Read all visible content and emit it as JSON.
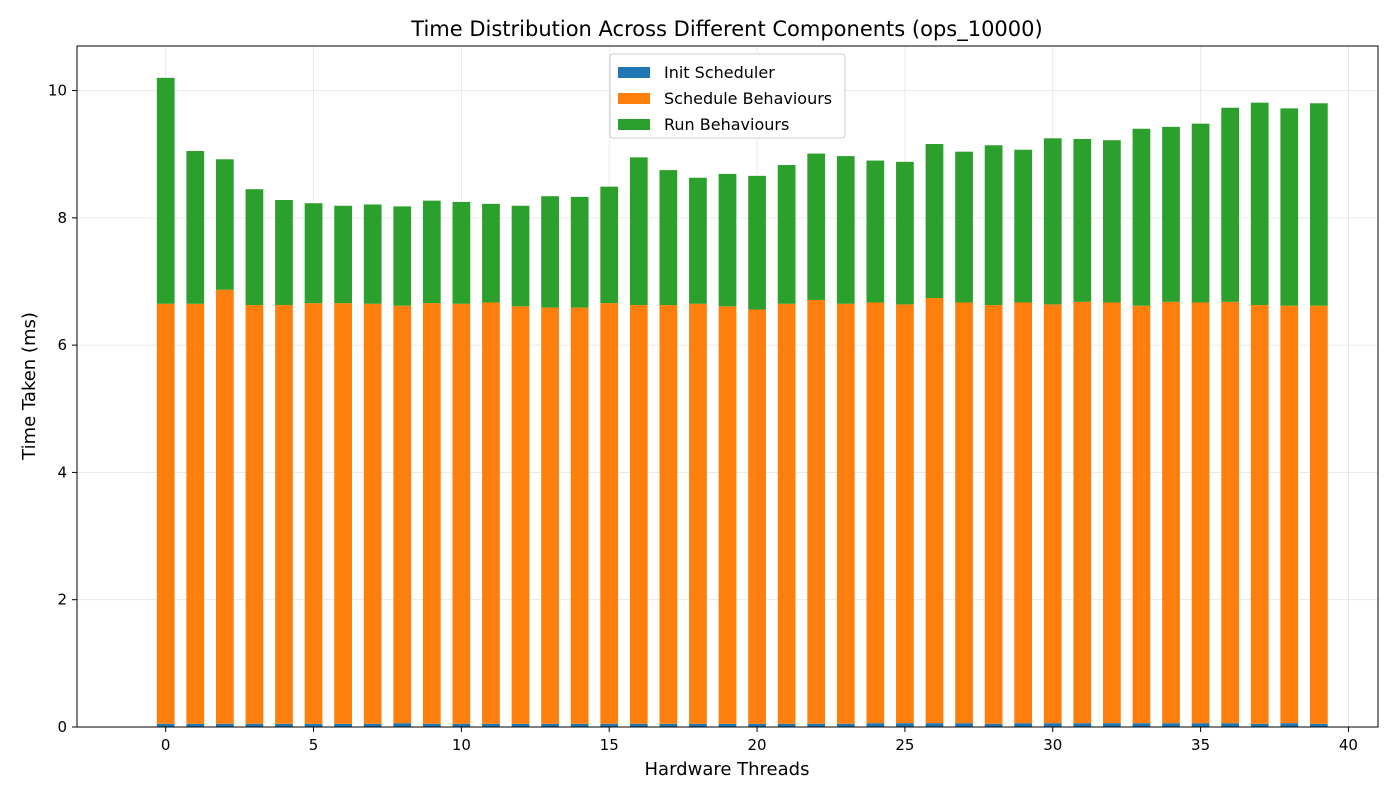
{
  "chart_data": {
    "type": "bar",
    "stacked": true,
    "title": "Time Distribution Across Different Components (ops_10000)",
    "xlabel": "Hardware Threads",
    "ylabel": "Time Taken (ms)",
    "xlim": [
      -3,
      41
    ],
    "ylim": [
      0,
      10.7
    ],
    "xticks": [
      0,
      5,
      10,
      15,
      20,
      25,
      30,
      35,
      40
    ],
    "yticks": [
      0,
      2,
      4,
      6,
      8,
      10
    ],
    "grid": true,
    "legend_position": "top-center",
    "x": [
      0,
      1,
      2,
      3,
      4,
      5,
      6,
      7,
      8,
      9,
      10,
      11,
      12,
      13,
      14,
      15,
      16,
      17,
      18,
      19,
      20,
      21,
      22,
      23,
      24,
      25,
      26,
      27,
      28,
      29,
      30,
      31,
      32,
      33,
      34,
      35,
      36,
      37,
      38,
      39
    ],
    "series": [
      {
        "name": "Init Scheduler",
        "color": "#1f77b4",
        "values": [
          0.05,
          0.05,
          0.05,
          0.05,
          0.05,
          0.05,
          0.05,
          0.05,
          0.06,
          0.05,
          0.05,
          0.05,
          0.05,
          0.05,
          0.05,
          0.05,
          0.05,
          0.05,
          0.05,
          0.05,
          0.05,
          0.05,
          0.05,
          0.05,
          0.06,
          0.06,
          0.06,
          0.06,
          0.05,
          0.06,
          0.06,
          0.06,
          0.06,
          0.06,
          0.06,
          0.06,
          0.06,
          0.05,
          0.06,
          0.05
        ]
      },
      {
        "name": "Schedule Behaviours",
        "color": "#ff7f0e",
        "values": [
          6.6,
          6.6,
          6.82,
          6.58,
          6.58,
          6.61,
          6.61,
          6.6,
          6.56,
          6.61,
          6.6,
          6.62,
          6.56,
          6.54,
          6.54,
          6.61,
          6.58,
          6.58,
          6.6,
          6.56,
          6.51,
          6.6,
          6.66,
          6.6,
          6.61,
          6.58,
          6.68,
          6.61,
          6.58,
          6.61,
          6.58,
          6.62,
          6.61,
          6.56,
          6.62,
          6.61,
          6.62,
          6.58,
          6.56,
          6.57
        ]
      },
      {
        "name": "Run Behaviours",
        "color": "#2ca02c",
        "values": [
          3.55,
          2.4,
          2.05,
          1.82,
          1.65,
          1.57,
          1.53,
          1.56,
          1.56,
          1.61,
          1.6,
          1.55,
          1.58,
          1.75,
          1.74,
          1.83,
          2.32,
          2.12,
          1.98,
          2.08,
          2.1,
          2.18,
          2.3,
          2.32,
          2.23,
          2.24,
          2.42,
          2.37,
          2.51,
          2.4,
          2.61,
          2.56,
          2.55,
          2.78,
          2.75,
          2.81,
          3.05,
          3.18,
          3.1,
          3.18
        ]
      }
    ]
  }
}
